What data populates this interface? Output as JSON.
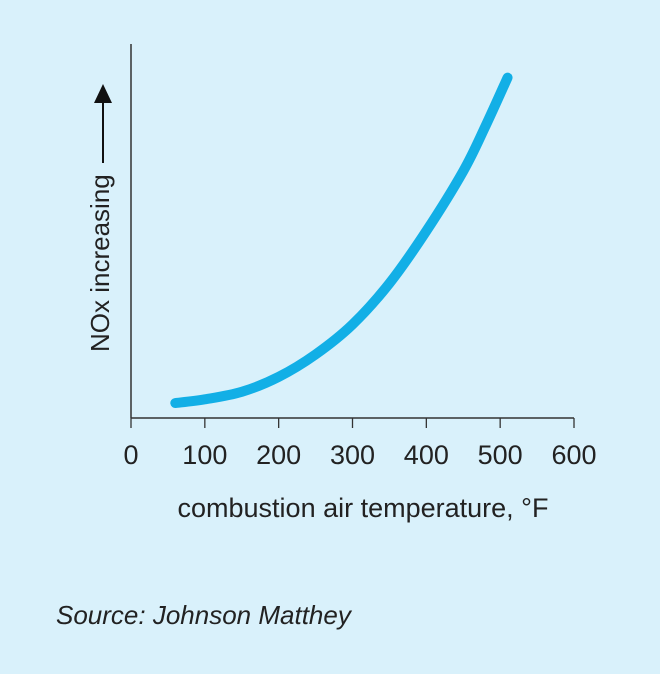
{
  "chart_data": {
    "type": "line",
    "title": "",
    "xlabel": "combustion air temperature, °F",
    "ylabel": "NOx increasing",
    "xlim": [
      0,
      600
    ],
    "ylim": [
      0,
      1
    ],
    "grid": false,
    "x_ticks": [
      "0",
      "100",
      "200",
      "300",
      "400",
      "500",
      "600"
    ],
    "y_ticks": [],
    "series": [
      {
        "x": [
          60,
          100,
          150,
          200,
          250,
          300,
          350,
          400,
          450,
          480,
          510
        ],
        "y": [
          0.04,
          0.05,
          0.07,
          0.11,
          0.17,
          0.25,
          0.36,
          0.5,
          0.66,
          0.78,
          0.91
        ]
      }
    ]
  },
  "source": "Source: Johnson Matthey",
  "colors": {
    "background": "#d9f1fb",
    "curve": "#12afe6",
    "axis": "#333333",
    "text": "#222222"
  },
  "icons": {
    "ylabel_arrow": "up-arrow-icon"
  }
}
